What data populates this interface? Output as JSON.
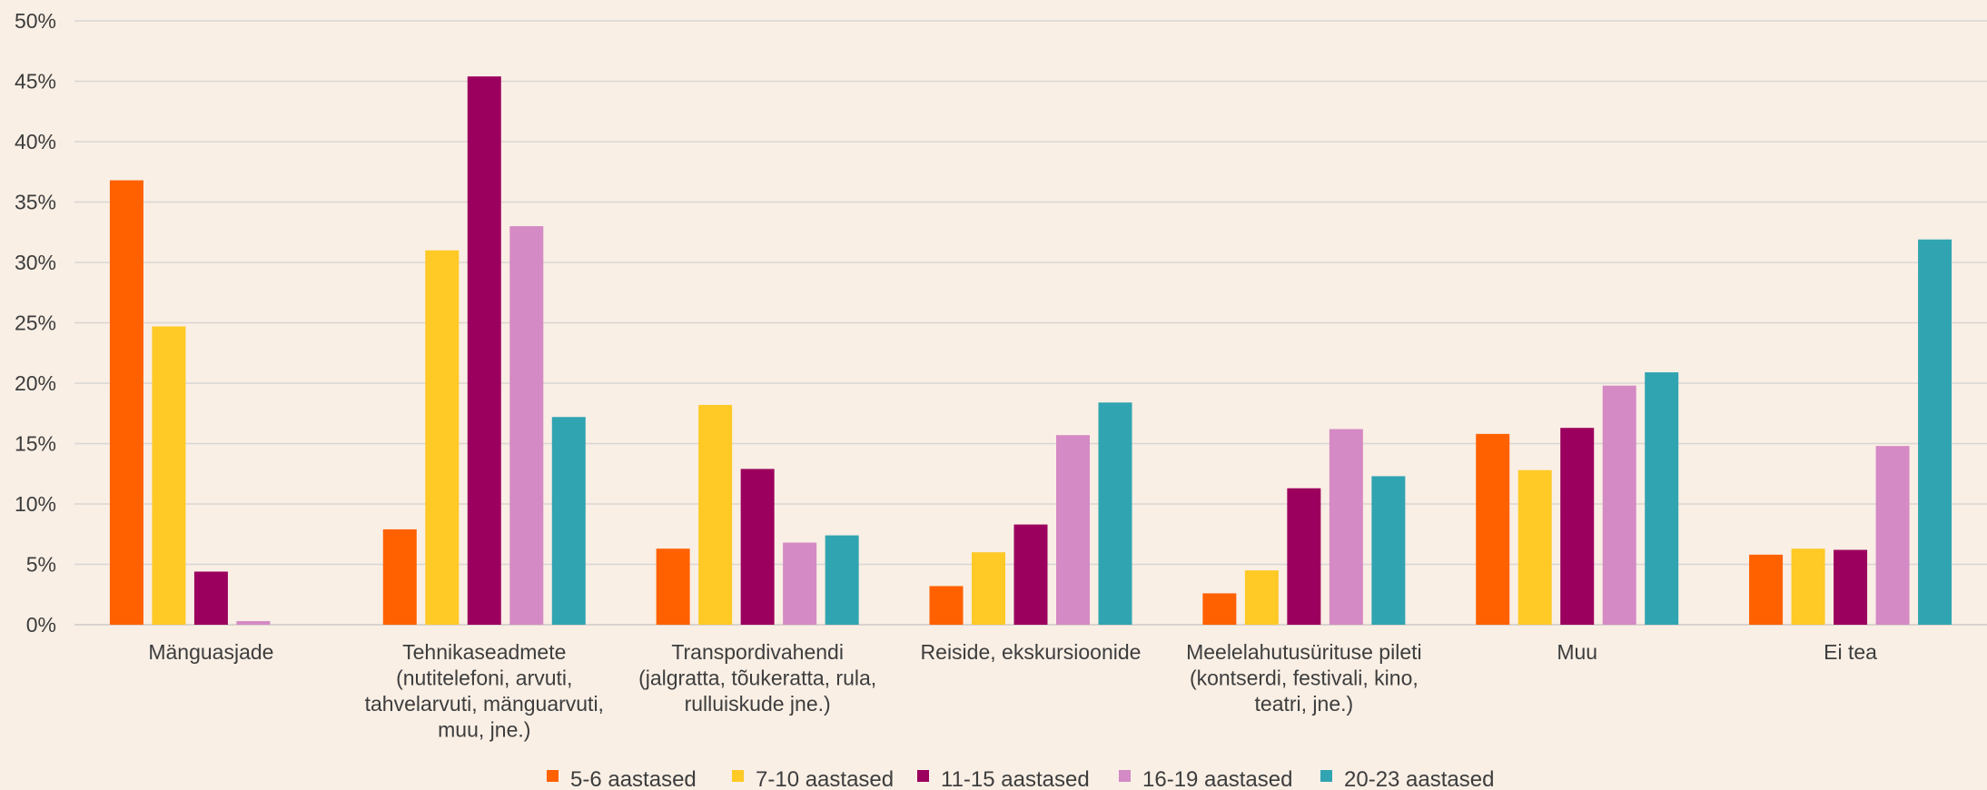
{
  "chart_data": {
    "type": "bar",
    "categories": [
      [
        "Mänguasjade"
      ],
      [
        "Tehnikaseadmete",
        "(nutitelefoni, arvuti,",
        "tahvelarvuti, mänguarvuti,",
        "muu, jne.)"
      ],
      [
        "Transpordivahendi",
        "(jalgratta, tõukeratta, rula,",
        "rulluiskude jne.)"
      ],
      [
        "Reiside, ekskursioonide"
      ],
      [
        "Meelelahutusürituse pileti",
        "(kontserdi, festivali, kino,",
        "teatri, jne.)"
      ],
      [
        "Muu"
      ],
      [
        "Ei tea"
      ]
    ],
    "series": [
      {
        "name": "5-6 aastased",
        "color": "#ff6100",
        "values": [
          36.8,
          7.9,
          6.3,
          3.2,
          2.6,
          15.8,
          5.8
        ]
      },
      {
        "name": "7-10 aastased",
        "color": "#ffc926",
        "values": [
          24.7,
          31.0,
          18.2,
          6.0,
          4.5,
          12.8,
          6.3
        ]
      },
      {
        "name": "11-15 aastased",
        "color": "#9c005e",
        "values": [
          4.4,
          45.4,
          12.9,
          8.3,
          11.3,
          16.3,
          6.2
        ]
      },
      {
        "name": "16-19 aastased",
        "color": "#d48ac4",
        "values": [
          0.3,
          33.0,
          6.8,
          15.7,
          16.2,
          19.8,
          14.8
        ]
      },
      {
        "name": "20-23 aastased",
        "color": "#31a4b1",
        "values": [
          null,
          17.2,
          7.4,
          18.4,
          12.3,
          20.9,
          31.9
        ]
      }
    ],
    "ylim": [
      0,
      50
    ],
    "yticks": [
      "0%",
      "5%",
      "10%",
      "15%",
      "20%",
      "25%",
      "30%",
      "35%",
      "40%",
      "45%",
      "50%"
    ],
    "grid": true,
    "legend": "bottom",
    "title": "",
    "xlabel": "",
    "ylabel": ""
  }
}
